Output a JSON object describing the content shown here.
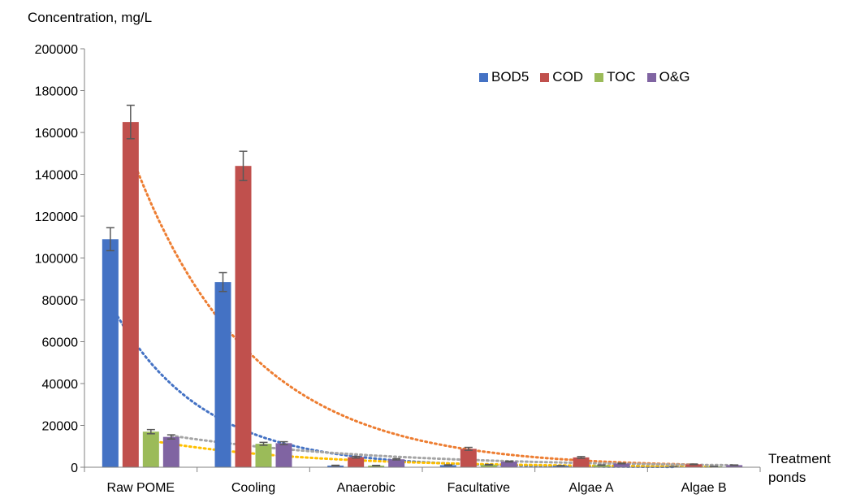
{
  "chart_data": {
    "type": "bar",
    "ylabel": "Concentration, mg/L",
    "xlabel_lines": [
      "Treatment",
      "ponds"
    ],
    "categories": [
      "Raw POME",
      "Cooling",
      "Anaerobic",
      "Facultative",
      "Algae A",
      "Algae B"
    ],
    "ylim": [
      0,
      200000
    ],
    "yticks": [
      0,
      20000,
      40000,
      60000,
      80000,
      100000,
      120000,
      140000,
      160000,
      180000,
      200000
    ],
    "grid": false,
    "legend_position": "top-right",
    "series": [
      {
        "name": "BOD5",
        "color": "#4472C4",
        "values": [
          109000,
          88500,
          800,
          1000,
          700,
          300
        ],
        "errors": [
          5500,
          4500,
          150,
          150,
          100,
          50
        ]
      },
      {
        "name": "COD",
        "color": "#C0504D",
        "values": [
          165000,
          144000,
          4800,
          8800,
          4700,
          1400
        ],
        "errors": [
          8000,
          7000,
          400,
          700,
          400,
          150
        ]
      },
      {
        "name": "TOC",
        "color": "#9BBB59",
        "values": [
          17000,
          11200,
          800,
          1200,
          1000,
          400
        ],
        "errors": [
          1000,
          700,
          100,
          150,
          100,
          50
        ]
      },
      {
        "name": "O&G",
        "color": "#8064A2",
        "values": [
          14500,
          11500,
          3800,
          2700,
          1800,
          1000
        ],
        "errors": [
          1000,
          700,
          300,
          200,
          150,
          100
        ]
      }
    ],
    "trendlines": [
      {
        "series": "COD",
        "color": "#ED7D31",
        "type": "exponential"
      },
      {
        "series": "BOD5",
        "color": "#4472C4",
        "type": "exponential"
      },
      {
        "series": "TOC",
        "color": "#FFC000",
        "type": "exponential"
      },
      {
        "series": "O&G",
        "color": "#A5A5A5",
        "type": "exponential"
      }
    ]
  }
}
